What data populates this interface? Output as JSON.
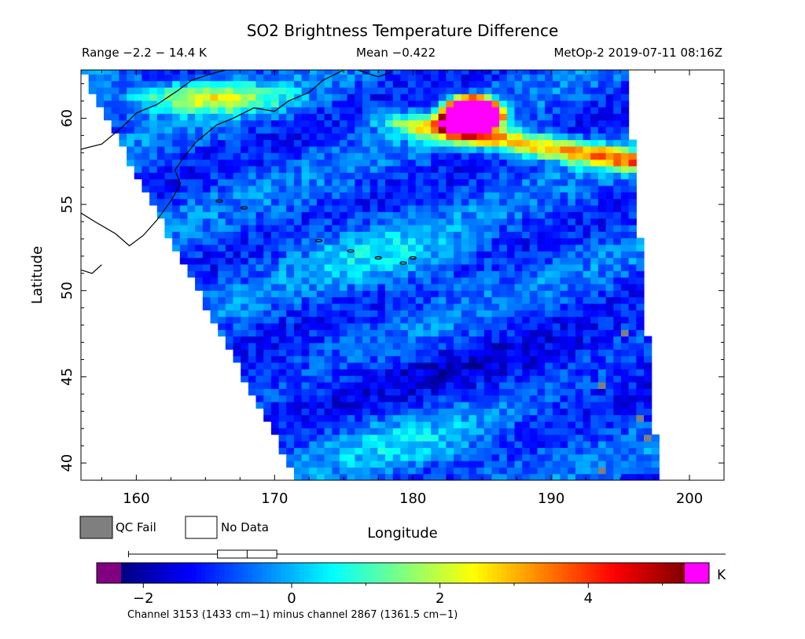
{
  "chart_data": {
    "type": "heatmap",
    "title": "SO2 Brightness Temperature Difference",
    "range_text": "Range −2.2 − 14.4 K",
    "mean_text": "Mean −0.422",
    "source_text": "MetOp-2 2019-07-11 08:16Z",
    "xlabel": "Longitude",
    "ylabel": "Latitude",
    "xlim": [
      156,
      202.5
    ],
    "ylim": [
      39,
      62.8
    ],
    "x_ticks": [
      160,
      170,
      180,
      190,
      200
    ],
    "x_tick_labels": [
      "160",
      "170",
      "180",
      "190",
      "200"
    ],
    "y_ticks": [
      40,
      45,
      50,
      55,
      60
    ],
    "y_tick_labels": [
      "40",
      "45",
      "50",
      "55",
      "60"
    ],
    "legend": {
      "qc_fail": {
        "label": "QC Fail",
        "color": "#7f7f7f"
      },
      "no_data": {
        "label": "No Data",
        "color": "#ffffff"
      }
    },
    "colorbar": {
      "min": -2.3,
      "max": 5.3,
      "ticks": [
        -2,
        0,
        2,
        4
      ],
      "tick_labels": [
        "−2",
        "0",
        "2",
        "4"
      ],
      "unit": "K",
      "under_color": "#800080",
      "over_color": "#ff00ff",
      "colormap": "jet",
      "caption": "Channel 3153 (1433 cm−1) minus channel 2867 (1361.5 cm−1)"
    },
    "boxplot": {
      "min": -2.2,
      "q1": -1.0,
      "median": -0.6,
      "q3": -0.2,
      "max": 14.4
    },
    "swath_edge_lon": [
      {
        "lat": 39,
        "lon": 171.7
      },
      {
        "lat": 62.8,
        "lon": 156
      }
    ],
    "swath_right_edge_lon": [
      {
        "lat": 39,
        "lon": 197.8
      },
      {
        "lat": 62.8,
        "lon": 195.5
      }
    ],
    "features": [
      {
        "name": "SO2 plume core",
        "lat": 60.2,
        "lon": 184.3,
        "value": 14.4
      },
      {
        "name": "SO2 plume tail",
        "lat": 58.2,
        "lon": 193.5,
        "value": 4.5
      },
      {
        "name": "northern band",
        "lat": 61.0,
        "lon": 167,
        "value": 2.5
      }
    ]
  }
}
